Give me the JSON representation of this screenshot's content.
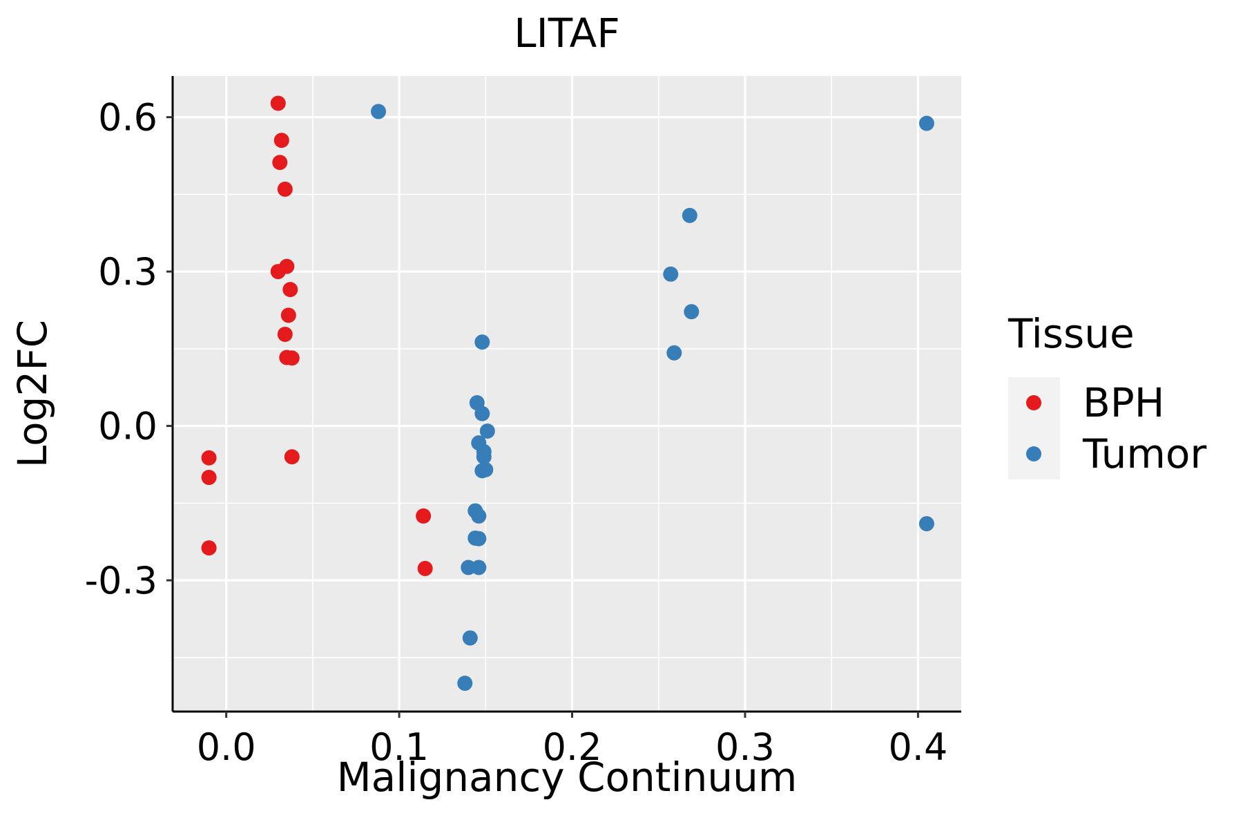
{
  "chart_data": {
    "type": "scatter",
    "title": "LITAF",
    "xlabel": "Malignancy Continuum",
    "ylabel": "Log2FC",
    "xlim": [
      -0.031,
      0.425
    ],
    "ylim": [
      -0.555,
      0.68
    ],
    "x_ticks": [
      0.0,
      0.1,
      0.2,
      0.3,
      0.4
    ],
    "x_tick_labels": [
      "0.0",
      "0.1",
      "0.2",
      "0.3",
      "0.4"
    ],
    "y_ticks": [
      -0.3,
      0.0,
      0.3,
      0.6
    ],
    "y_tick_labels": [
      "-0.3",
      "0.0",
      "0.3",
      "0.6"
    ],
    "grid": true,
    "legend": {
      "title": "Tissue",
      "position": "right"
    },
    "series": [
      {
        "name": "BPH",
        "color": "#E41A1C",
        "points": [
          [
            0.03,
            0.627
          ],
          [
            0.032,
            0.555
          ],
          [
            0.031,
            0.512
          ],
          [
            0.034,
            0.46
          ],
          [
            0.035,
            0.31
          ],
          [
            0.03,
            0.3
          ],
          [
            0.037,
            0.265
          ],
          [
            0.036,
            0.215
          ],
          [
            0.034,
            0.178
          ],
          [
            0.035,
            0.133
          ],
          [
            0.038,
            0.132
          ],
          [
            -0.01,
            -0.062
          ],
          [
            0.038,
            -0.06
          ],
          [
            -0.01,
            -0.1
          ],
          [
            -0.01,
            -0.237
          ],
          [
            0.114,
            -0.175
          ],
          [
            0.115,
            -0.277
          ]
        ]
      },
      {
        "name": "Tumor",
        "color": "#377EB8",
        "points": [
          [
            0.088,
            0.611
          ],
          [
            0.405,
            0.588
          ],
          [
            0.268,
            0.409
          ],
          [
            0.257,
            0.295
          ],
          [
            0.269,
            0.222
          ],
          [
            0.148,
            0.163
          ],
          [
            0.259,
            0.142
          ],
          [
            0.145,
            0.045
          ],
          [
            0.148,
            0.024
          ],
          [
            0.151,
            -0.01
          ],
          [
            0.146,
            -0.033
          ],
          [
            0.149,
            -0.05
          ],
          [
            0.149,
            -0.06
          ],
          [
            0.15,
            -0.085
          ],
          [
            0.148,
            -0.087
          ],
          [
            0.144,
            -0.165
          ],
          [
            0.146,
            -0.175
          ],
          [
            0.144,
            -0.218
          ],
          [
            0.146,
            -0.219
          ],
          [
            0.14,
            -0.275
          ],
          [
            0.146,
            -0.275
          ],
          [
            0.405,
            -0.19
          ],
          [
            0.141,
            -0.412
          ],
          [
            0.138,
            -0.5
          ]
        ]
      }
    ]
  }
}
